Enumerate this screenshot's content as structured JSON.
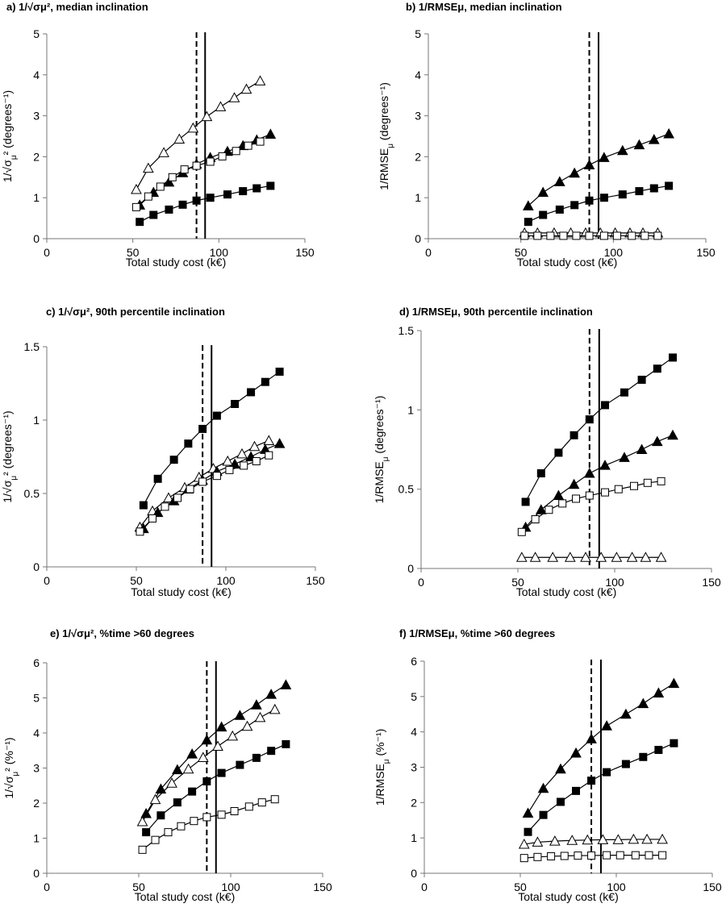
{
  "figure": {
    "background": "#ffffff",
    "line_color": "#000000"
  },
  "chart_data": [
    {
      "id": "a",
      "type": "line",
      "title": "a) 1/√σμ²,  median inclination",
      "xlabel": "Total study cost (k€)",
      "ylabel": "1/√σμ² (degrees⁻¹)",
      "xlim": [
        0,
        150
      ],
      "ylim": [
        0,
        5
      ],
      "xticks": [
        0,
        50,
        100,
        150
      ],
      "yticks": [
        0,
        1,
        2,
        3,
        4,
        5
      ],
      "grid": false,
      "legend": "none",
      "vlines": [
        {
          "x": 87,
          "style": "dashed"
        },
        {
          "x": 92,
          "style": "solid"
        }
      ],
      "series": [
        {
          "marker": "triangle-open",
          "x": [
            52,
            59,
            68,
            77,
            85,
            93,
            101,
            109,
            116,
            124
          ],
          "y": [
            1.2,
            1.72,
            2.1,
            2.43,
            2.7,
            2.98,
            3.22,
            3.44,
            3.65,
            3.85
          ]
        },
        {
          "marker": "triangle-filled",
          "x": [
            54,
            62,
            71,
            79,
            87,
            95,
            105,
            114,
            122,
            130
          ],
          "y": [
            0.82,
            1.13,
            1.38,
            1.61,
            1.82,
            1.98,
            2.13,
            2.27,
            2.41,
            2.55
          ]
        },
        {
          "marker": "square-open",
          "x": [
            52,
            59,
            66,
            73,
            80,
            87,
            95,
            102,
            110,
            117,
            124
          ],
          "y": [
            0.77,
            1.03,
            1.27,
            1.5,
            1.69,
            1.78,
            1.88,
            2.01,
            2.14,
            2.27,
            2.37
          ]
        },
        {
          "marker": "square-filled",
          "x": [
            54,
            62,
            71,
            79,
            87,
            95,
            105,
            114,
            122,
            130
          ],
          "y": [
            0.41,
            0.58,
            0.71,
            0.83,
            0.93,
            1.0,
            1.08,
            1.16,
            1.23,
            1.29
          ]
        }
      ]
    },
    {
      "id": "b",
      "type": "line",
      "title": "b) 1/RMSEμ, median inclination",
      "xlabel": "Total study cost (k€)",
      "ylabel": "1/RMSEμ (degrees⁻¹)",
      "xlim": [
        0,
        150
      ],
      "ylim": [
        0,
        5
      ],
      "xticks": [
        0,
        50,
        100,
        150
      ],
      "yticks": [
        0,
        1,
        2,
        3,
        4,
        5
      ],
      "grid": false,
      "legend": "none",
      "vlines": [
        {
          "x": 87,
          "style": "dashed"
        },
        {
          "x": 92,
          "style": "solid"
        }
      ],
      "series": [
        {
          "marker": "triangle-filled",
          "x": [
            54,
            62,
            71,
            79,
            87,
            95,
            105,
            114,
            122,
            130
          ],
          "y": [
            0.8,
            1.13,
            1.39,
            1.6,
            1.8,
            1.98,
            2.15,
            2.29,
            2.42,
            2.56
          ]
        },
        {
          "marker": "square-filled",
          "x": [
            54,
            62,
            71,
            79,
            87,
            95,
            105,
            114,
            122,
            130
          ],
          "y": [
            0.41,
            0.58,
            0.71,
            0.82,
            0.93,
            1.0,
            1.08,
            1.16,
            1.23,
            1.29
          ]
        },
        {
          "marker": "triangle-open",
          "x": [
            52,
            59,
            68,
            77,
            85,
            93,
            101,
            109,
            116,
            124
          ],
          "y": [
            0.14,
            0.14,
            0.14,
            0.14,
            0.14,
            0.14,
            0.14,
            0.14,
            0.14,
            0.14
          ]
        },
        {
          "marker": "square-open",
          "x": [
            52,
            59,
            66,
            73,
            80,
            87,
            95,
            102,
            110,
            117,
            124
          ],
          "y": [
            0.07,
            0.07,
            0.07,
            0.07,
            0.07,
            0.07,
            0.07,
            0.07,
            0.07,
            0.07,
            0.07
          ]
        }
      ]
    },
    {
      "id": "c",
      "type": "line",
      "title": "c) 1/√σμ², 90th percentile inclination",
      "xlabel": "Total study cost (k€)",
      "ylabel": "1/√σμ² (degrees⁻¹)",
      "xlim": [
        0,
        150
      ],
      "ylim": [
        0,
        1.5
      ],
      "xticks": [
        0,
        50,
        100,
        150
      ],
      "yticks": [
        0,
        0.5,
        1,
        1.5
      ],
      "grid": false,
      "legend": "none",
      "vlines": [
        {
          "x": 87,
          "style": "dashed"
        },
        {
          "x": 92,
          "style": "solid"
        }
      ],
      "series": [
        {
          "marker": "square-filled",
          "x": [
            54,
            62,
            71,
            79,
            87,
            95,
            105,
            114,
            122,
            130
          ],
          "y": [
            0.42,
            0.6,
            0.73,
            0.84,
            0.94,
            1.03,
            1.11,
            1.19,
            1.26,
            1.33
          ]
        },
        {
          "marker": "triangle-open",
          "x": [
            52,
            59,
            68,
            77,
            85,
            93,
            101,
            109,
            116,
            124
          ],
          "y": [
            0.27,
            0.38,
            0.47,
            0.54,
            0.61,
            0.67,
            0.72,
            0.77,
            0.82,
            0.86
          ]
        },
        {
          "marker": "triangle-filled",
          "x": [
            54,
            62,
            71,
            79,
            87,
            95,
            105,
            114,
            122,
            130
          ],
          "y": [
            0.26,
            0.37,
            0.45,
            0.53,
            0.59,
            0.65,
            0.7,
            0.75,
            0.8,
            0.84
          ]
        },
        {
          "marker": "square-open",
          "x": [
            52,
            59,
            66,
            73,
            80,
            87,
            95,
            102,
            110,
            117,
            124
          ],
          "y": [
            0.24,
            0.33,
            0.41,
            0.47,
            0.53,
            0.58,
            0.62,
            0.66,
            0.69,
            0.72,
            0.76
          ]
        }
      ]
    },
    {
      "id": "d",
      "type": "line",
      "title": "d) 1/RMSEμ, 90th percentile inclination",
      "xlabel": "Total study cost (k€)",
      "ylabel": "1/RMSEμ (degrees⁻¹)",
      "xlim": [
        0,
        150
      ],
      "ylim": [
        0,
        1.5
      ],
      "xticks": [
        0,
        50,
        100,
        150
      ],
      "yticks": [
        0,
        0.5,
        1,
        1.5
      ],
      "grid": false,
      "legend": "none",
      "vlines": [
        {
          "x": 87,
          "style": "dashed"
        },
        {
          "x": 92,
          "style": "solid"
        }
      ],
      "series": [
        {
          "marker": "square-filled",
          "x": [
            54,
            62,
            71,
            79,
            87,
            95,
            105,
            114,
            122,
            130
          ],
          "y": [
            0.42,
            0.6,
            0.73,
            0.84,
            0.94,
            1.03,
            1.11,
            1.19,
            1.26,
            1.33
          ]
        },
        {
          "marker": "triangle-filled",
          "x": [
            54,
            62,
            71,
            79,
            87,
            95,
            105,
            114,
            122,
            130
          ],
          "y": [
            0.26,
            0.37,
            0.46,
            0.53,
            0.6,
            0.65,
            0.7,
            0.75,
            0.8,
            0.84
          ]
        },
        {
          "marker": "square-open",
          "x": [
            52,
            59,
            66,
            73,
            80,
            87,
            95,
            102,
            110,
            117,
            124
          ],
          "y": [
            0.23,
            0.31,
            0.37,
            0.41,
            0.44,
            0.46,
            0.48,
            0.5,
            0.52,
            0.54,
            0.55
          ]
        },
        {
          "marker": "triangle-open",
          "x": [
            52,
            59,
            68,
            77,
            85,
            93,
            101,
            109,
            116,
            124
          ],
          "y": [
            0.07,
            0.07,
            0.07,
            0.07,
            0.07,
            0.07,
            0.07,
            0.07,
            0.07,
            0.07
          ]
        }
      ]
    },
    {
      "id": "e",
      "type": "line",
      "title": "e) 1/√σμ², %time >60 degrees",
      "xlabel": "Total study cost (k€)",
      "ylabel": "1/√σμ² (%⁻¹)",
      "xlim": [
        0,
        150
      ],
      "ylim": [
        0,
        6
      ],
      "xticks": [
        0,
        50,
        100,
        150
      ],
      "yticks": [
        0,
        1,
        2,
        3,
        4,
        5,
        6
      ],
      "grid": false,
      "legend": "none",
      "vlines": [
        {
          "x": 87,
          "style": "dashed"
        },
        {
          "x": 92,
          "style": "solid"
        }
      ],
      "series": [
        {
          "marker": "triangle-filled",
          "x": [
            54,
            62,
            71,
            79,
            87,
            95,
            105,
            114,
            122,
            130
          ],
          "y": [
            1.7,
            2.4,
            2.95,
            3.4,
            3.8,
            4.17,
            4.5,
            4.8,
            5.1,
            5.37
          ]
        },
        {
          "marker": "triangle-open",
          "x": [
            52,
            59,
            68,
            77,
            85,
            93,
            101,
            109,
            116,
            124
          ],
          "y": [
            1.47,
            2.1,
            2.57,
            2.97,
            3.3,
            3.62,
            3.91,
            4.19,
            4.44,
            4.67
          ]
        },
        {
          "marker": "square-filled",
          "x": [
            54,
            62,
            71,
            79,
            87,
            95,
            105,
            114,
            122,
            130
          ],
          "y": [
            1.17,
            1.65,
            2.02,
            2.33,
            2.62,
            2.86,
            3.09,
            3.29,
            3.49,
            3.68
          ]
        },
        {
          "marker": "square-open",
          "x": [
            52,
            59,
            66,
            73,
            80,
            87,
            95,
            102,
            110,
            117,
            124
          ],
          "y": [
            0.67,
            0.95,
            1.17,
            1.34,
            1.49,
            1.6,
            1.67,
            1.77,
            1.9,
            2.02,
            2.11
          ]
        }
      ]
    },
    {
      "id": "f",
      "type": "line",
      "title": "f) 1/RMSEμ, %time >60 degrees",
      "xlabel": "Total study cost  (k€)",
      "ylabel": "1/RMSEμ (%⁻¹)",
      "xlim": [
        0,
        150
      ],
      "ylim": [
        0,
        6
      ],
      "xticks": [
        0,
        50,
        100,
        150
      ],
      "yticks": [
        0,
        1,
        2,
        3,
        4,
        5,
        6
      ],
      "grid": false,
      "legend": "none",
      "vlines": [
        {
          "x": 87,
          "style": "dashed"
        },
        {
          "x": 92,
          "style": "solid"
        }
      ],
      "series": [
        {
          "marker": "triangle-filled",
          "x": [
            54,
            62,
            71,
            79,
            87,
            95,
            105,
            114,
            122,
            130
          ],
          "y": [
            1.7,
            2.4,
            2.95,
            3.4,
            3.8,
            4.17,
            4.5,
            4.8,
            5.1,
            5.37
          ]
        },
        {
          "marker": "square-filled",
          "x": [
            54,
            62,
            71,
            79,
            87,
            95,
            105,
            114,
            122,
            130
          ],
          "y": [
            1.17,
            1.65,
            2.02,
            2.33,
            2.62,
            2.86,
            3.09,
            3.29,
            3.49,
            3.68
          ]
        },
        {
          "marker": "triangle-open",
          "x": [
            52,
            59,
            68,
            77,
            85,
            93,
            101,
            109,
            116,
            124
          ],
          "y": [
            0.82,
            0.88,
            0.91,
            0.93,
            0.94,
            0.95,
            0.95,
            0.96,
            0.96,
            0.96
          ]
        },
        {
          "marker": "square-open",
          "x": [
            52,
            59,
            66,
            73,
            80,
            87,
            95,
            102,
            110,
            117,
            124
          ],
          "y": [
            0.43,
            0.46,
            0.48,
            0.49,
            0.5,
            0.5,
            0.51,
            0.51,
            0.51,
            0.51,
            0.51
          ]
        }
      ]
    }
  ]
}
